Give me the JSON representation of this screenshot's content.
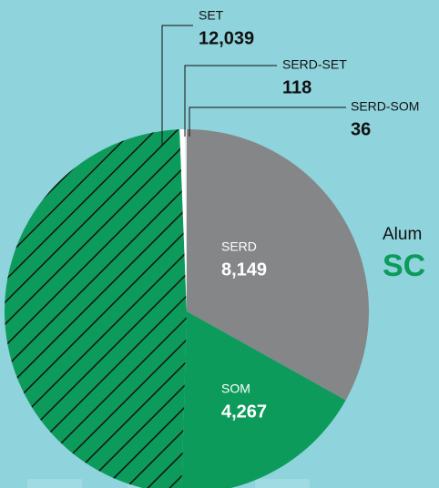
{
  "chart_data": {
    "type": "pie",
    "categories": [
      "SERD",
      "SOM",
      "SET",
      "SERD-SET",
      "SERD-SOM"
    ],
    "values": [
      8149,
      4267,
      12039,
      118,
      36
    ],
    "value_labels": [
      "8,149",
      "4,267",
      "12,039",
      "118",
      "36"
    ],
    "colors": [
      "#858688",
      "#0c9b5b",
      "#0c9b5b",
      "#ffffff",
      "#e6e6e6"
    ],
    "hatch": [
      false,
      false,
      true,
      false,
      false
    ],
    "annotations": [
      "Alum",
      "SC"
    ]
  }
}
